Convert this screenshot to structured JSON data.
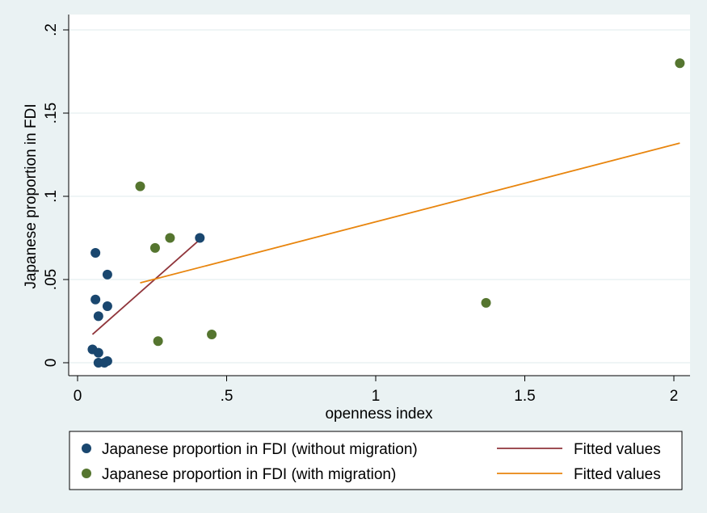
{
  "chart_data": {
    "type": "scatter",
    "xlabel": "openness index",
    "ylabel": "Japanese proportion in FDI",
    "xlim": [
      0,
      2.04
    ],
    "ylim": [
      0,
      0.2
    ],
    "x_ticks": [
      {
        "value": 0,
        "label": "0"
      },
      {
        "value": 0.5,
        "label": ".5"
      },
      {
        "value": 1,
        "label": "1"
      },
      {
        "value": 1.5,
        "label": "1.5"
      },
      {
        "value": 2,
        "label": "2"
      }
    ],
    "y_ticks": [
      {
        "value": 0,
        "label": "0"
      },
      {
        "value": 0.05,
        "label": ".05"
      },
      {
        "value": 0.1,
        "label": ".1"
      },
      {
        "value": 0.15,
        "label": ".15"
      },
      {
        "value": 0.2,
        "label": ".2"
      }
    ],
    "grid": "horizontal",
    "legend_position": "bottom",
    "series": [
      {
        "name": "Japanese proportion in FDI (without migration)",
        "kind": "scatter",
        "color": "#1a476f",
        "points": [
          {
            "x": 0.06,
            "y": 0.066
          },
          {
            "x": 0.1,
            "y": 0.053
          },
          {
            "x": 0.06,
            "y": 0.038
          },
          {
            "x": 0.1,
            "y": 0.034
          },
          {
            "x": 0.07,
            "y": 0.028
          },
          {
            "x": 0.05,
            "y": 0.008
          },
          {
            "x": 0.07,
            "y": 0.006
          },
          {
            "x": 0.07,
            "y": 0.0
          },
          {
            "x": 0.09,
            "y": 0.0
          },
          {
            "x": 0.1,
            "y": 0.001
          },
          {
            "x": 0.41,
            "y": 0.075
          }
        ]
      },
      {
        "name": "Japanese proportion in FDI (with migration)",
        "kind": "scatter",
        "color": "#55752f",
        "points": [
          {
            "x": 0.21,
            "y": 0.106
          },
          {
            "x": 0.26,
            "y": 0.069
          },
          {
            "x": 0.31,
            "y": 0.075
          },
          {
            "x": 0.27,
            "y": 0.013
          },
          {
            "x": 0.45,
            "y": 0.017
          },
          {
            "x": 1.37,
            "y": 0.036
          },
          {
            "x": 2.02,
            "y": 0.18
          }
        ]
      },
      {
        "name": "Fitted values",
        "kind": "line",
        "color": "#90353b",
        "points": [
          {
            "x": 0.05,
            "y": 0.017
          },
          {
            "x": 0.41,
            "y": 0.074
          }
        ]
      },
      {
        "name": "Fitted values",
        "kind": "line",
        "color": "#e8850e",
        "points": [
          {
            "x": 0.21,
            "y": 0.048
          },
          {
            "x": 2.02,
            "y": 0.132
          }
        ]
      }
    ]
  }
}
